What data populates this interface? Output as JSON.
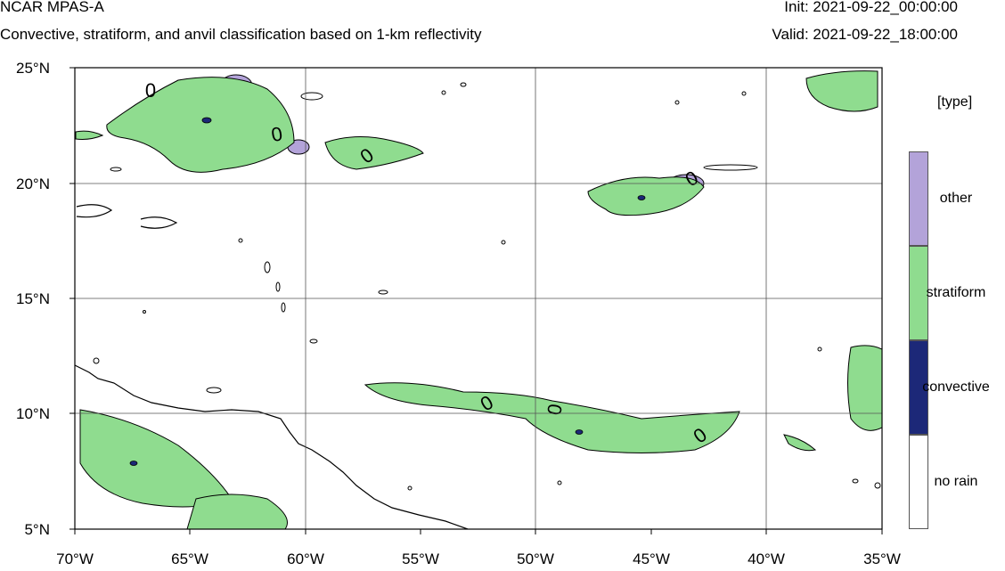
{
  "header": {
    "title": "NCAR MPAS-A",
    "subtitle": "Convective, stratiform, and anvil classification based on 1-km reflectivity",
    "init": "Init: 2021-09-22_00:00:00",
    "valid": "Valid: 2021-09-22_18:00:00"
  },
  "map": {
    "lon_range": [
      -70,
      -35
    ],
    "lat_range": [
      5,
      25
    ],
    "grid": true,
    "lat_labels": [
      "25°N",
      "20°N",
      "15°N",
      "10°N",
      "5°N"
    ],
    "lon_labels": [
      "70°W",
      "65°W",
      "60°W",
      "55°W",
      "50°W",
      "45°W",
      "40°W",
      "35°W"
    ],
    "contour_label": "0"
  },
  "legend": {
    "title": "[type]",
    "items": [
      {
        "label": "other",
        "color": "#b3a3d9"
      },
      {
        "label": "stratiform",
        "color": "#8fdc8f"
      },
      {
        "label": "convective",
        "color": "#1c2878"
      },
      {
        "label": "no rain",
        "color": "#ffffff"
      }
    ]
  }
}
